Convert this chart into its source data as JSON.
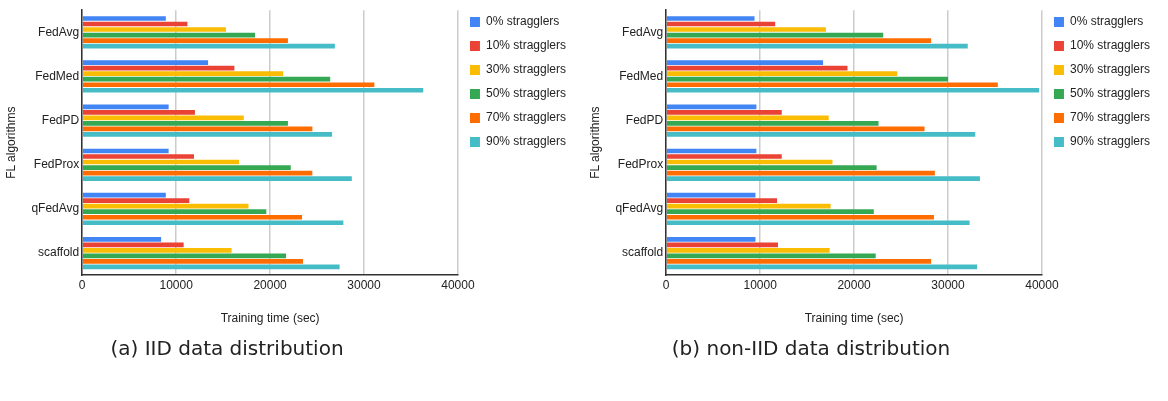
{
  "chart_data": [
    {
      "type": "bar",
      "orientation": "horizontal",
      "xlabel": "Training time (sec)",
      "ylabel": "FL algorithms",
      "categories": [
        "FedAvg",
        "FedMed",
        "FedPD",
        "FedProx",
        "qFedAvg",
        "scaffold"
      ],
      "xlim": [
        0,
        40000
      ],
      "xticks": [
        0,
        10000,
        20000,
        30000,
        40000
      ],
      "grid": "x",
      "legend": "right",
      "annotations": [
        "(a) IID data distribution"
      ],
      "series": [
        {
          "name": "0% stragglers",
          "color": "#4285f4",
          "values": [
            8900,
            13400,
            9200,
            9200,
            8900,
            8400
          ]
        },
        {
          "name": "10% stragglers",
          "color": "#ea4335",
          "values": [
            11200,
            16200,
            12000,
            11900,
            11400,
            10800
          ]
        },
        {
          "name": "30% stragglers",
          "color": "#fbbc04",
          "values": [
            15300,
            21400,
            17200,
            16700,
            17700,
            15900
          ]
        },
        {
          "name": "50% stragglers",
          "color": "#34a853",
          "values": [
            18400,
            26400,
            21900,
            22200,
            19600,
            21700
          ]
        },
        {
          "name": "70% stragglers",
          "color": "#ff6d01",
          "values": [
            21900,
            31100,
            24500,
            24500,
            23400,
            23500
          ]
        },
        {
          "name": "90% stragglers",
          "color": "#46bdc6",
          "values": [
            26900,
            36300,
            26600,
            28700,
            27800,
            27400
          ]
        }
      ]
    },
    {
      "type": "bar",
      "orientation": "horizontal",
      "xlabel": "Training time (sec)",
      "ylabel": "FL algorithms",
      "categories": [
        "FedAvg",
        "FedMed",
        "FedPD",
        "FedProx",
        "qFedAvg",
        "scaffold"
      ],
      "xlim": [
        0,
        40000
      ],
      "xticks": [
        0,
        10000,
        20000,
        30000,
        40000
      ],
      "grid": "x",
      "legend": "right",
      "annotations": [
        "(b) non-IID data distribution"
      ],
      "series": [
        {
          "name": "0% stragglers",
          "color": "#4285f4",
          "values": [
            9400,
            16700,
            9600,
            9600,
            9500,
            9500
          ]
        },
        {
          "name": "10% stragglers",
          "color": "#ea4335",
          "values": [
            11600,
            19300,
            12300,
            12300,
            11800,
            11900
          ]
        },
        {
          "name": "30% stragglers",
          "color": "#fbbc04",
          "values": [
            17000,
            24600,
            17300,
            17700,
            17500,
            17400
          ]
        },
        {
          "name": "50% stragglers",
          "color": "#34a853",
          "values": [
            23100,
            30000,
            22600,
            22400,
            22100,
            22300
          ]
        },
        {
          "name": "70% stragglers",
          "color": "#ff6d01",
          "values": [
            28200,
            35300,
            27500,
            28600,
            28500,
            28200
          ]
        },
        {
          "name": "90% stragglers",
          "color": "#46bdc6",
          "values": [
            32100,
            39700,
            32900,
            33400,
            32300,
            33100
          ]
        }
      ]
    }
  ]
}
